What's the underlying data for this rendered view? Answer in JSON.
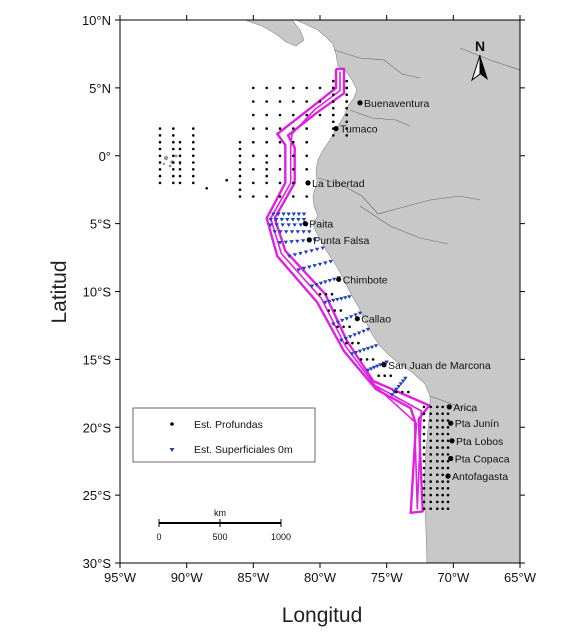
{
  "map": {
    "x_axis_title": "Longitud",
    "y_axis_title": "Latitud",
    "lon_range": [
      -95,
      -65
    ],
    "lat_range": [
      -30,
      10
    ],
    "x_ticks": [
      {
        "value": -95,
        "label": "95°W"
      },
      {
        "value": -90,
        "label": "90°W"
      },
      {
        "value": -85,
        "label": "85°W"
      },
      {
        "value": -80,
        "label": "80°W"
      },
      {
        "value": -75,
        "label": "75°W"
      },
      {
        "value": -70,
        "label": "70°W"
      },
      {
        "value": -65,
        "label": "65°W"
      }
    ],
    "y_ticks": [
      {
        "value": 10,
        "label": "10°N"
      },
      {
        "value": 5,
        "label": "5°N"
      },
      {
        "value": 0,
        "label": "0°"
      },
      {
        "value": -5,
        "label": "5°S"
      },
      {
        "value": -10,
        "label": "10°S"
      },
      {
        "value": -15,
        "label": "15°S"
      },
      {
        "value": -20,
        "label": "20°S"
      },
      {
        "value": -25,
        "label": "25°S"
      },
      {
        "value": -30,
        "label": "30°S"
      }
    ],
    "land_color": "#c8c8c8",
    "ocean_color": "#ffffff",
    "zone_color": "#e020e0",
    "deep_station_color": "#000000",
    "surface_station_color": "#1f3fbf",
    "ports": [
      {
        "name": "Buenaventura",
        "lon": -77.0,
        "lat": 3.9
      },
      {
        "name": "Tumaco",
        "lon": -78.8,
        "lat": 2.0
      },
      {
        "name": "La Libertad",
        "lon": -80.9,
        "lat": -2.0
      },
      {
        "name": "Paita",
        "lon": -81.1,
        "lat": -5.0
      },
      {
        "name": "Punta Falsa",
        "lon": -80.8,
        "lat": -6.2
      },
      {
        "name": "Chimbote",
        "lon": -78.6,
        "lat": -9.1
      },
      {
        "name": "Callao",
        "lon": -77.2,
        "lat": -12.0
      },
      {
        "name": "San Juan de Marcona",
        "lon": -75.2,
        "lat": -15.4
      },
      {
        "name": "Arica",
        "lon": -70.3,
        "lat": -18.5
      },
      {
        "name": "Pta Junín",
        "lon": -70.2,
        "lat": -19.7
      },
      {
        "name": "Pta Lobos",
        "lon": -70.1,
        "lat": -21.0
      },
      {
        "name": "Pta Copaca",
        "lon": -70.2,
        "lat": -22.3
      },
      {
        "name": "Antofagasta",
        "lon": -70.4,
        "lat": -23.6
      }
    ],
    "legend": {
      "deep_label": "Est. Profundas",
      "surface_label": "Est. Superficiales 0m"
    },
    "scale_bar": {
      "unit": "km",
      "labels": [
        "0",
        "500",
        "1000"
      ]
    },
    "north_arrow": {
      "label": "N"
    }
  }
}
